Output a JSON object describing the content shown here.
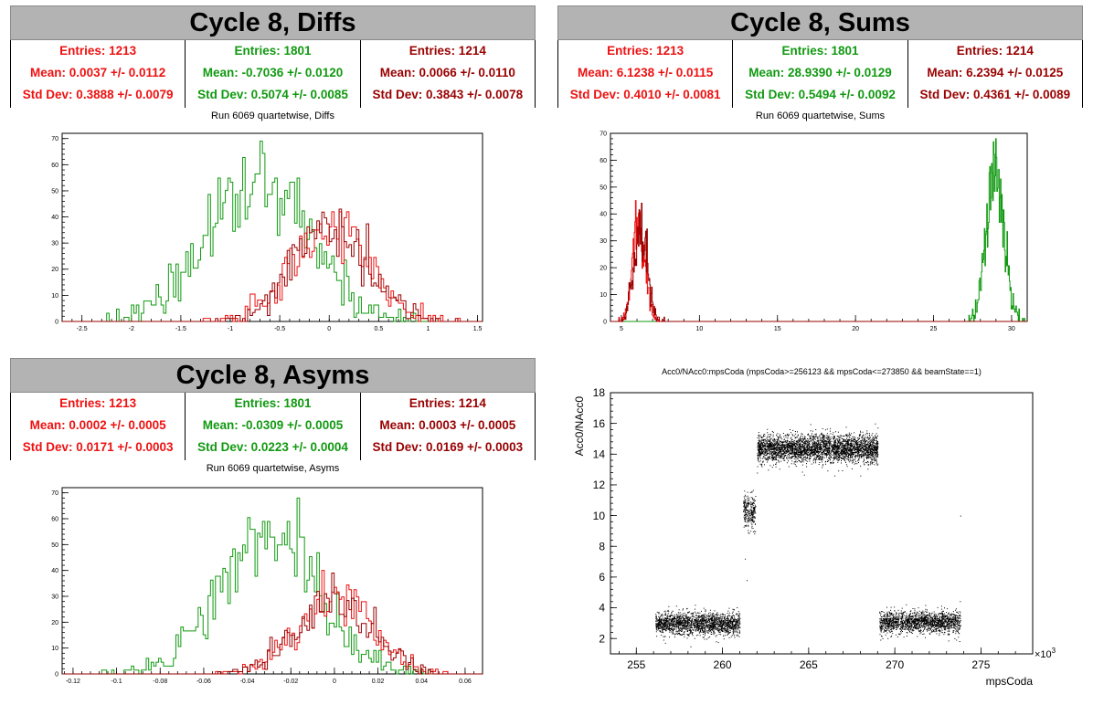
{
  "colors": {
    "red": "#ee1111",
    "green": "#119911",
    "darkred": "#990000",
    "banner_bg": "#b3b3b3"
  },
  "panels": [
    {
      "id": "diffs",
      "banner": "Cycle 8, Diffs",
      "stats": [
        {
          "entries": "Entries: 1213",
          "mean": "Mean: 0.0037 +/- 0.0112",
          "std": "Std Dev: 0.3888 +/- 0.0079"
        },
        {
          "entries": "Entries: 1801",
          "mean": "Mean: -0.7036 +/- 0.0120",
          "std": "Std Dev: 0.5074 +/- 0.0085"
        },
        {
          "entries": "Entries: 1214",
          "mean": "Mean: 0.0066 +/- 0.0110",
          "std": "Std Dev: 0.3843 +/- 0.0078"
        }
      ],
      "subtitle": "Run 6069 quartetwise, Diffs"
    },
    {
      "id": "sums",
      "banner": "Cycle 8, Sums",
      "stats": [
        {
          "entries": "Entries: 1213",
          "mean": "Mean: 6.1238 +/- 0.0115",
          "std": "Std Dev: 0.4010 +/- 0.0081"
        },
        {
          "entries": "Entries: 1801",
          "mean": "Mean: 28.9390 +/- 0.0129",
          "std": "Std Dev: 0.5494 +/- 0.0092"
        },
        {
          "entries": "Entries: 1214",
          "mean": "Mean: 6.2394 +/- 0.0125",
          "std": "Std Dev: 0.4361 +/- 0.0089"
        }
      ],
      "subtitle": "Run 6069 quartetwise, Sums"
    },
    {
      "id": "asyms",
      "banner": "Cycle 8, Asyms",
      "stats": [
        {
          "entries": "Entries: 1213",
          "mean": "Mean: 0.0002 +/- 0.0005",
          "std": "Std Dev: 0.0171 +/- 0.0003"
        },
        {
          "entries": "Entries: 1801",
          "mean": "Mean: -0.0309 +/- 0.0005",
          "std": "Std Dev: 0.0223 +/- 0.0004"
        },
        {
          "entries": "Entries: 1214",
          "mean": "Mean: 0.0003 +/- 0.0005",
          "std": "Std Dev: 0.0169 +/- 0.0003"
        }
      ],
      "subtitle": "Run 6069 quartetwise, Asyms"
    }
  ],
  "chart_data": [
    {
      "type": "histogram",
      "name": "diffs",
      "xlim": [
        -2.7,
        1.55
      ],
      "ylim": [
        0,
        72
      ],
      "xticks": [
        "-2.5",
        "-2",
        "-1.5",
        "-1",
        "-0.5",
        "0",
        "0.5",
        "1",
        "1.5"
      ],
      "yticks": [
        "0",
        "10",
        "20",
        "30",
        "40",
        "50",
        "60",
        "70"
      ],
      "series": [
        {
          "color": "#119911",
          "mean": -0.7036,
          "std": 0.5074,
          "entries": 1801,
          "peak": 69
        },
        {
          "color": "#ee1111",
          "mean": 0.0037,
          "std": 0.3888,
          "entries": 1213,
          "peak": 42
        },
        {
          "color": "#990000",
          "mean": 0.0066,
          "std": 0.3843,
          "entries": 1214,
          "peak": 43
        }
      ]
    },
    {
      "type": "histogram",
      "name": "sums",
      "xlim": [
        4.3,
        31
      ],
      "ylim": [
        0,
        70
      ],
      "xticks": [
        "5",
        "10",
        "15",
        "20",
        "25",
        "30"
      ],
      "yticks": [
        "0",
        "10",
        "20",
        "30",
        "40",
        "50",
        "60",
        "70"
      ],
      "series": [
        {
          "color": "#119911",
          "mean": 28.939,
          "std": 0.5494,
          "entries": 1801,
          "peak": 68
        },
        {
          "color": "#ee1111",
          "mean": 6.1238,
          "std": 0.401,
          "entries": 1213,
          "peak": 45
        },
        {
          "color": "#990000",
          "mean": 6.2394,
          "std": 0.4361,
          "entries": 1214,
          "peak": 44
        }
      ]
    },
    {
      "type": "histogram",
      "name": "asyms",
      "xlim": [
        -0.125,
        0.068
      ],
      "ylim": [
        0,
        72
      ],
      "xticks": [
        "-0.12",
        "-0.1",
        "-0.08",
        "-0.06",
        "-0.04",
        "-0.02",
        "0",
        "0.02",
        "0.04",
        "0.06"
      ],
      "yticks": [
        "0",
        "10",
        "20",
        "30",
        "40",
        "50",
        "60",
        "70"
      ],
      "series": [
        {
          "color": "#119911",
          "mean": -0.0309,
          "std": 0.0223,
          "entries": 1801,
          "peak": 68
        },
        {
          "color": "#ee1111",
          "mean": 0.0002,
          "std": 0.0171,
          "entries": 1213,
          "peak": 40
        },
        {
          "color": "#990000",
          "mean": 0.0003,
          "std": 0.0169,
          "entries": 1214,
          "peak": 39
        }
      ]
    },
    {
      "type": "scatter",
      "name": "acc0",
      "title": "Acc0/NAcc0:mpsCoda (mpsCoda>=256123 && mpsCoda<=273850 && beamState==1)",
      "xlabel": "mpsCoda",
      "ylabel": "Acc0/NAcc0",
      "xexp": "×10",
      "xexp_pow": "3",
      "xlim": [
        253.5,
        278
      ],
      "ylim": [
        1,
        18
      ],
      "xticks": [
        "255",
        "260",
        "265",
        "270",
        "275"
      ],
      "yticks": [
        "2",
        "4",
        "6",
        "8",
        "10",
        "12",
        "14",
        "16",
        "18"
      ],
      "clusters": [
        {
          "x": [
            256.1,
            261.0
          ],
          "y": 3.0,
          "sd": 0.35,
          "n": 1900
        },
        {
          "x": [
            261.2,
            261.9
          ],
          "y": 10.3,
          "sd": 0.55,
          "n": 260
        },
        {
          "x": [
            262.0,
            269.0
          ],
          "y": 14.4,
          "sd": 0.45,
          "n": 3400
        },
        {
          "x": [
            269.1,
            273.8
          ],
          "y": 3.1,
          "sd": 0.35,
          "n": 1700
        }
      ]
    }
  ]
}
